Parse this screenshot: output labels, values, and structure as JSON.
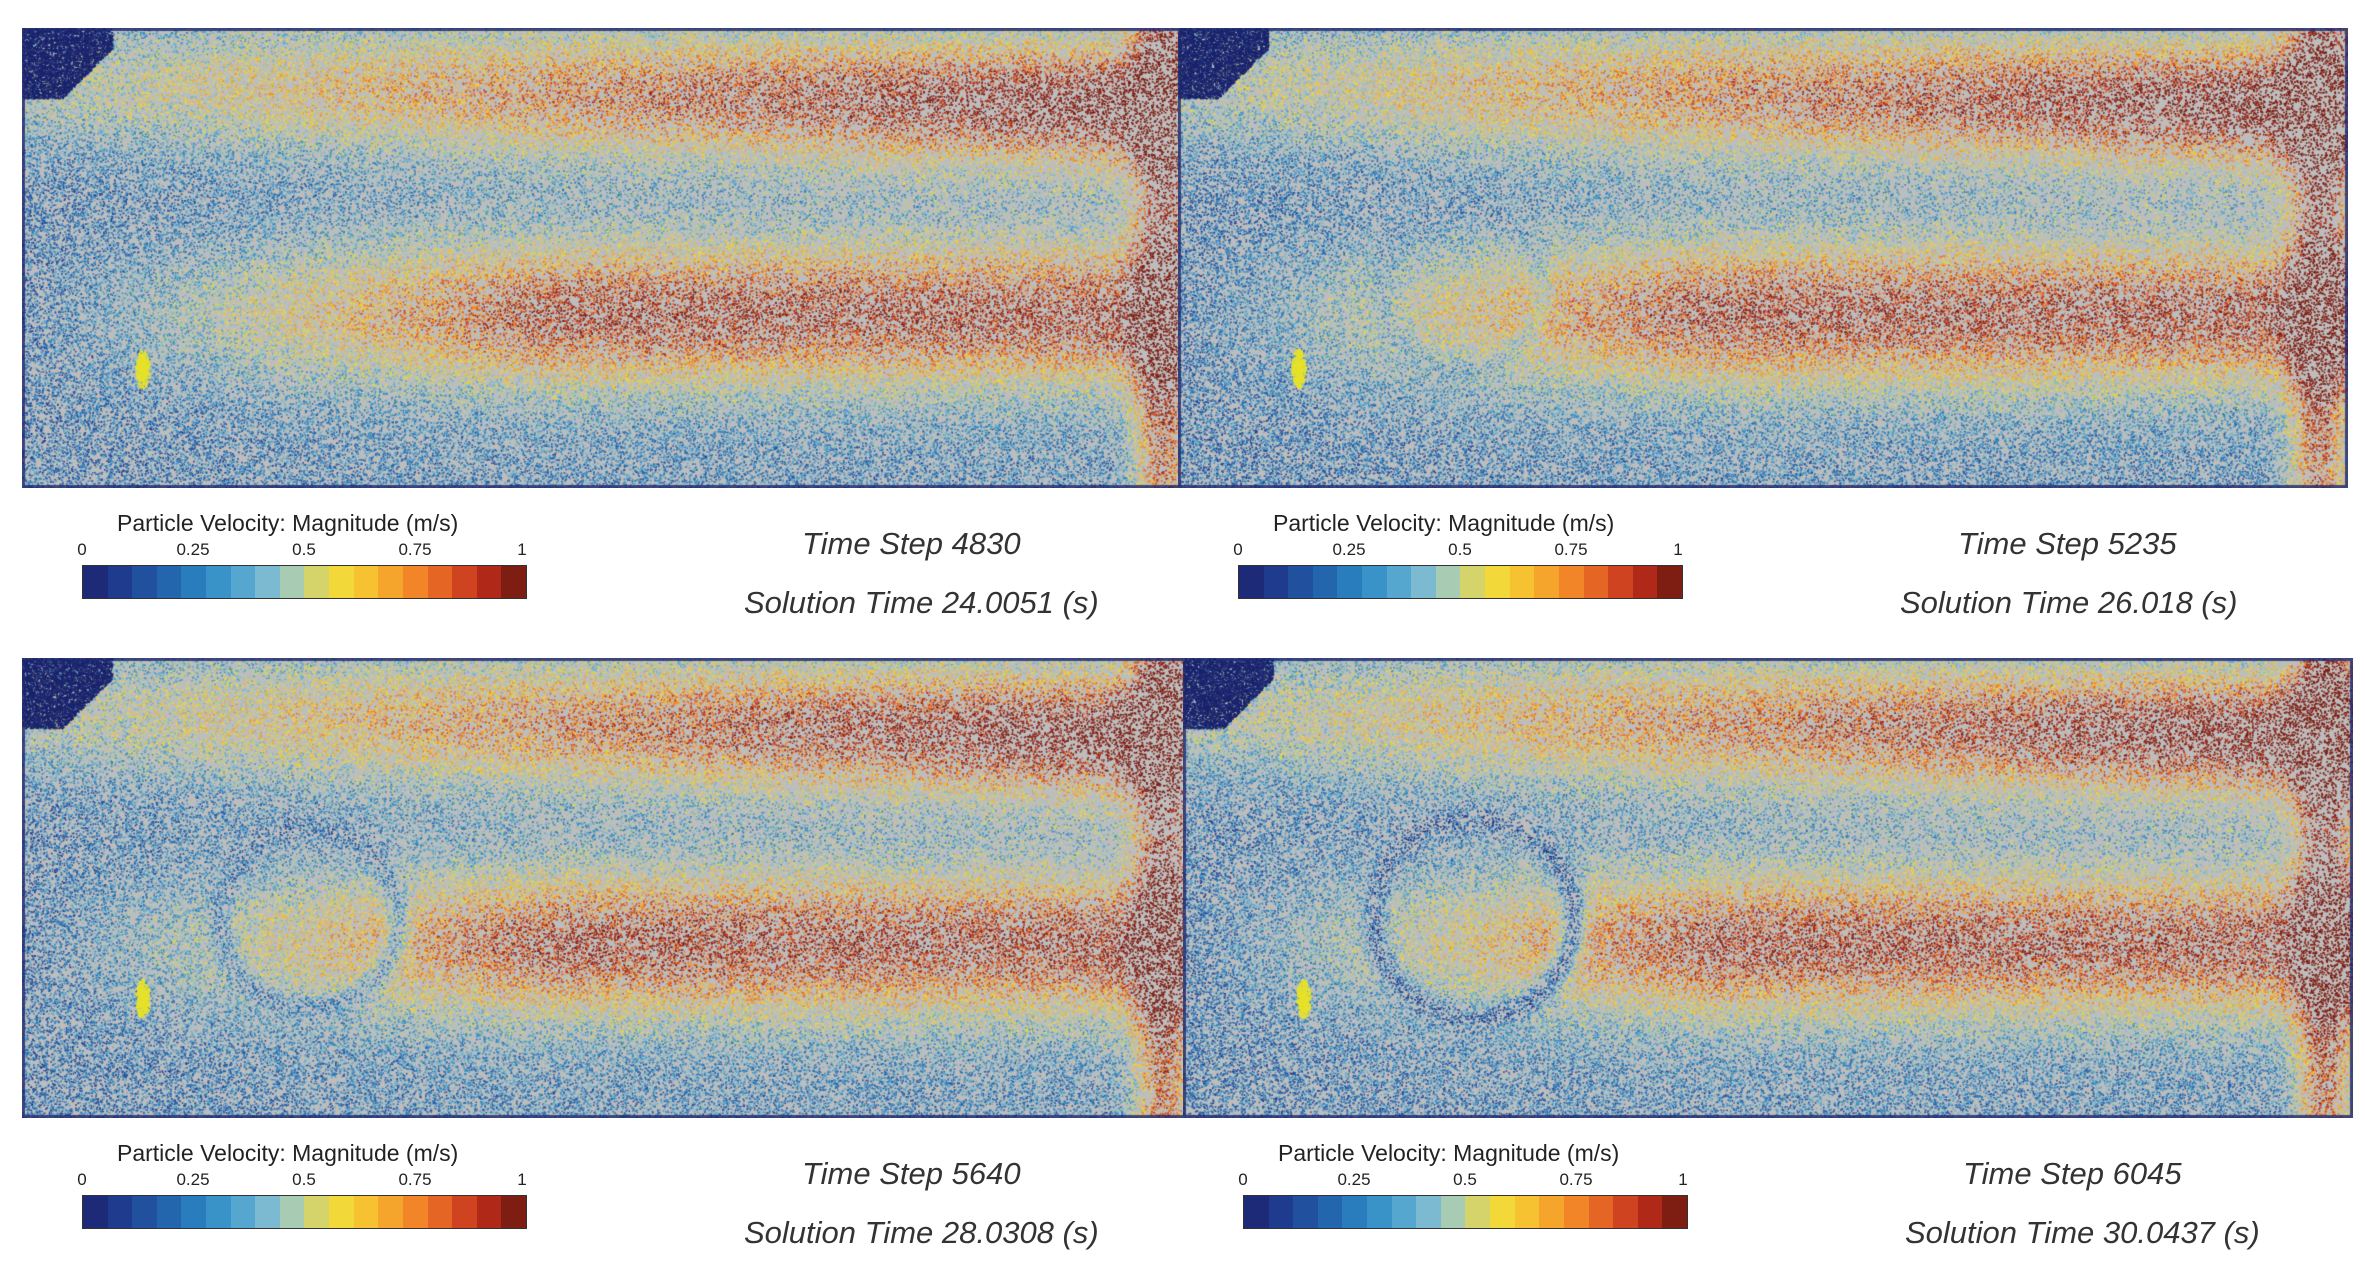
{
  "legend": {
    "title": "Particle Velocity: Magnitude (m/s)",
    "ticks": [
      "0",
      "0.25",
      "0.5",
      "0.75",
      "1"
    ],
    "colormap": [
      "#1c2a78",
      "#1f3b8e",
      "#21509f",
      "#2366ae",
      "#2a7dbd",
      "#3a93c8",
      "#55a7cf",
      "#7bbad0",
      "#a8cbb3",
      "#d4d46a",
      "#f3d83a",
      "#f7c232",
      "#f6a52c",
      "#f18528",
      "#e56524",
      "#cf4320",
      "#b02818",
      "#7e1d12"
    ]
  },
  "panels": [
    {
      "time_step": "Time Step 4830",
      "solution_time": "Solution Time 24.0051 (s)",
      "vortex": 0.0
    },
    {
      "time_step": "Time Step 5235",
      "solution_time": "Solution Time 26.018 (s)",
      "vortex": 0.33
    },
    {
      "time_step": "Time Step 5640",
      "solution_time": "Solution Time 28.0308 (s)",
      "vortex": 0.66
    },
    {
      "time_step": "Time Step 6045",
      "solution_time": "Solution Time 30.0437 (s)",
      "vortex": 1.0
    }
  ]
}
